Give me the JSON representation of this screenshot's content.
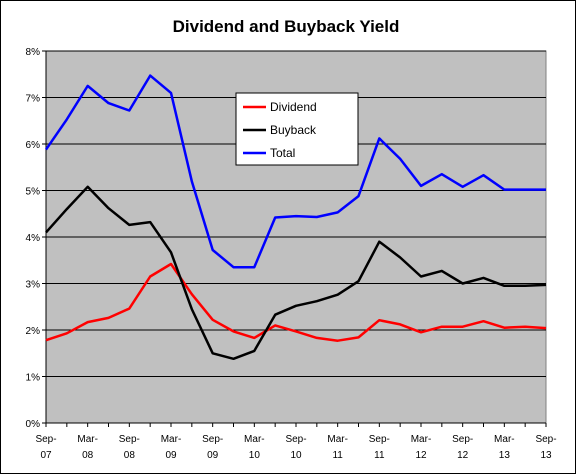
{
  "chart_data": {
    "type": "line",
    "title": "Dividend and Buyback Yield",
    "xlabel": "",
    "ylabel": "",
    "ylim": [
      0,
      8
    ],
    "y_ticks": [
      "0%",
      "1%",
      "2%",
      "3%",
      "4%",
      "5%",
      "6%",
      "7%",
      "8%"
    ],
    "x": [
      "Sep-07",
      "Dec-07",
      "Mar-08",
      "Jun-08",
      "Sep-08",
      "Dec-08",
      "Mar-09",
      "Jun-09",
      "Sep-09",
      "Dec-09",
      "Mar-10",
      "Jun-10",
      "Sep-10",
      "Dec-10",
      "Mar-11",
      "Jun-11",
      "Sep-11",
      "Dec-11",
      "Mar-12",
      "Jun-12",
      "Sep-12",
      "Dec-12",
      "Mar-13",
      "Jun-13",
      "Sep-13"
    ],
    "x_tick_labels": [
      {
        "top": "Sep-",
        "bottom": "07"
      },
      {
        "top": "Mar-",
        "bottom": "08"
      },
      {
        "top": "Sep-",
        "bottom": "08"
      },
      {
        "top": "Mar-",
        "bottom": "09"
      },
      {
        "top": "Sep-",
        "bottom": "09"
      },
      {
        "top": "Mar-",
        "bottom": "10"
      },
      {
        "top": "Sep-",
        "bottom": "10"
      },
      {
        "top": "Mar-",
        "bottom": "11"
      },
      {
        "top": "Sep-",
        "bottom": "11"
      },
      {
        "top": "Mar-",
        "bottom": "12"
      },
      {
        "top": "Sep-",
        "bottom": "12"
      },
      {
        "top": "Mar-",
        "bottom": "13"
      },
      {
        "top": "Sep-",
        "bottom": "13"
      }
    ],
    "series": [
      {
        "name": "Dividend",
        "color": "#ff0000",
        "values": [
          1.78,
          1.93,
          2.17,
          2.26,
          2.46,
          3.15,
          3.42,
          2.77,
          2.22,
          1.97,
          1.83,
          2.1,
          1.97,
          1.83,
          1.77,
          1.84,
          2.21,
          2.12,
          1.95,
          2.07,
          2.07,
          2.19,
          2.05,
          2.07,
          2.04
        ]
      },
      {
        "name": "Buyback",
        "color": "#000000",
        "values": [
          4.1,
          4.6,
          5.08,
          4.62,
          4.26,
          4.32,
          3.67,
          2.45,
          1.5,
          1.38,
          1.55,
          2.33,
          2.52,
          2.62,
          2.76,
          3.05,
          3.9,
          3.56,
          3.15,
          3.27,
          3.0,
          3.12,
          2.95,
          2.95,
          2.97
        ]
      },
      {
        "name": "Total",
        "color": "#0000ff",
        "values": [
          5.88,
          6.53,
          7.25,
          6.88,
          6.72,
          7.47,
          7.1,
          5.2,
          3.72,
          3.35,
          3.35,
          4.42,
          4.45,
          4.43,
          4.53,
          4.88,
          6.12,
          5.68,
          5.1,
          5.35,
          5.08,
          5.33,
          5.02,
          5.02,
          5.02
        ]
      }
    ],
    "legend_position": "upper-center",
    "grid": "horizontal",
    "plot_background": "#c0c0c0",
    "outer_background": "#ffffff"
  }
}
